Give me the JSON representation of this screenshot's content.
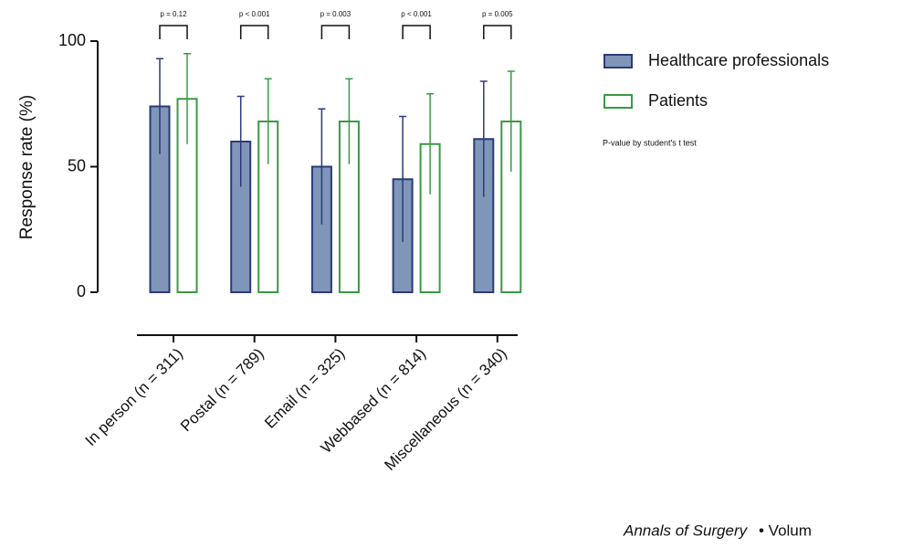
{
  "chart_data": {
    "type": "bar",
    "y_label": "Response rate (%)",
    "categories": [
      "In person (n = 311)",
      "Postal (n = 789)",
      "Email (n = 325)",
      "Webbased (n = 814)",
      "Miscellaneous (n = 340)"
    ],
    "series": [
      {
        "name": "Healthcare professionals",
        "color": "#7f96b8",
        "edge": "#2b3a78",
        "values": [
          74,
          60,
          50,
          45,
          61
        ],
        "errors": [
          19,
          18,
          23,
          25,
          23
        ]
      },
      {
        "name": "Patients",
        "color": "#ffffff",
        "edge": "#3a9a44",
        "values": [
          77,
          68,
          68,
          59,
          68
        ],
        "errors": [
          18,
          17,
          17,
          20,
          20
        ]
      }
    ],
    "p_values": [
      "p = 0.12",
      "p < 0.001",
      "p = 0.003",
      "p < 0.001",
      "p = 0.005"
    ],
    "note": "P-value by student's t test",
    "ylim": [
      0,
      100
    ],
    "yticks": [
      0,
      50,
      100
    ],
    "source_journal": "Annals of Surgery",
    "source_rest": "• Volum"
  }
}
